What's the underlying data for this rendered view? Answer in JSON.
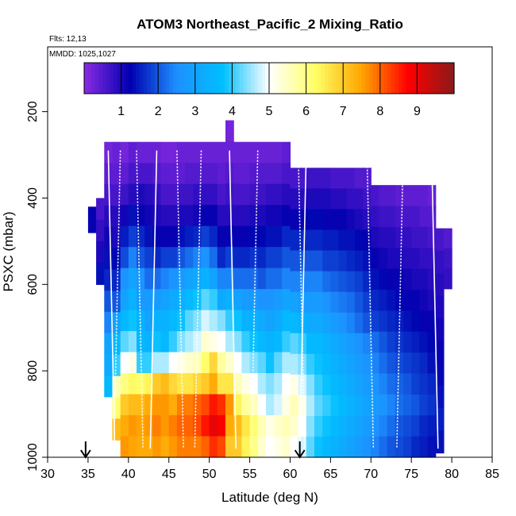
{
  "chart_data": {
    "type": "heatmap",
    "title": "ATOM3 Northeast_Pacific_2 Mixing_Ratio",
    "subtitle_flights": "Flts: 12,13",
    "subtitle_dates": "MMDD: 1025,1027",
    "xlabel": "Latitude (deg N)",
    "ylabel": "PSXC (mbar)",
    "xlim": [
      30,
      85
    ],
    "ylim": [
      1000,
      50
    ],
    "y_reversed": true,
    "x_ticks": [
      "30",
      "35",
      "40",
      "45",
      "50",
      "55",
      "60",
      "65",
      "70",
      "75",
      "80",
      "85"
    ],
    "y_ticks": [
      "200",
      "400",
      "600",
      "800",
      "1000"
    ],
    "colorbar": {
      "range": [
        0,
        10
      ],
      "tick_labels": [
        "1",
        "2",
        "3",
        "4",
        "5",
        "6",
        "7",
        "8",
        "9"
      ],
      "colors": [
        "#8a2be2",
        "#0000b0",
        "#1e90ff",
        "#00bfff",
        "#ffffff",
        "#ffff66",
        "#ffa500",
        "#ff0000",
        "#8b1a1a"
      ]
    },
    "arrows_latitude": [
      34.7,
      61.2
    ],
    "profile_latitudes": [
      37.5,
      39.0,
      41.0,
      43.5,
      46.0,
      49.0,
      52.5,
      56.0,
      61.0,
      62.0,
      69.5,
      74.0,
      77.5
    ],
    "columns": [
      {
        "lat": 35.5,
        "ptop": 420,
        "pbot": 480,
        "values": [
          1.2
        ]
      },
      {
        "lat": 36.5,
        "ptop": 400,
        "pbot": 600,
        "values": [
          0.6,
          0.8,
          1.0,
          1.4
        ]
      },
      {
        "lat": 37.5,
        "ptop": 270,
        "pbot": 860,
        "values": [
          0.2,
          0.4,
          0.6,
          0.9,
          1.1,
          1.4,
          1.6,
          2.0,
          2.4,
          3.0,
          3.2,
          3.6
        ]
      },
      {
        "lat": 38.5,
        "ptop": 270,
        "pbot": 960,
        "values": [
          0.3,
          0.4,
          0.6,
          0.9,
          1.0,
          1.3,
          1.6,
          2.0,
          3.0,
          3.6,
          4.0,
          5.6,
          6.2,
          7.2
        ]
      },
      {
        "lat": 39.5,
        "ptop": 270,
        "pbot": 1000,
        "values": [
          0.2,
          0.4,
          0.7,
          1.1,
          1.5,
          1.9,
          2.6,
          3.0,
          3.6,
          4.2,
          5.0,
          6.0,
          7.0,
          7.4,
          7.6
        ]
      },
      {
        "lat": 40.5,
        "ptop": 270,
        "pbot": 1000,
        "values": [
          0.4,
          0.6,
          0.9,
          1.4,
          1.8,
          2.4,
          3.0,
          3.4,
          3.8,
          4.4,
          5.2,
          6.3,
          7.2,
          7.6,
          7.5
        ]
      },
      {
        "lat": 41.5,
        "ptop": 270,
        "pbot": 1000,
        "values": [
          0.3,
          0.6,
          1.0,
          1.2,
          1.6,
          2.0,
          2.6,
          2.8,
          3.4,
          3.6,
          4.0,
          6.2,
          7.2,
          7.5,
          7.4
        ]
      },
      {
        "lat": 42.5,
        "ptop": 270,
        "pbot": 1000,
        "values": [
          0.3,
          0.6,
          0.9,
          1.1,
          1.4,
          1.8,
          2.2,
          2.8,
          3.0,
          3.4,
          4.0,
          6.4,
          7.4,
          7.6,
          7.4
        ]
      },
      {
        "lat": 43.5,
        "ptop": 270,
        "pbot": 1000,
        "values": [
          0.3,
          0.5,
          0.8,
          1.0,
          1.2,
          1.6,
          2.2,
          2.8,
          3.4,
          3.8,
          4.6,
          7.0,
          7.6,
          7.8,
          7.6
        ]
      },
      {
        "lat": 44.5,
        "ptop": 270,
        "pbot": 1000,
        "values": [
          0.2,
          0.4,
          0.6,
          0.9,
          1.2,
          1.8,
          2.4,
          3.0,
          3.4,
          3.6,
          4.6,
          7.2,
          7.6,
          7.6,
          7.4
        ]
      },
      {
        "lat": 45.5,
        "ptop": 270,
        "pbot": 1000,
        "values": [
          0.2,
          0.4,
          0.6,
          0.9,
          1.2,
          1.8,
          2.6,
          3.2,
          3.6,
          4.0,
          5.0,
          6.8,
          7.4,
          7.8,
          7.6
        ]
      },
      {
        "lat": 46.5,
        "ptop": 270,
        "pbot": 1000,
        "values": [
          0.3,
          0.4,
          0.7,
          1.0,
          1.4,
          2.0,
          2.8,
          3.4,
          3.8,
          4.4,
          5.2,
          6.6,
          7.8,
          8.0,
          7.8
        ]
      },
      {
        "lat": 47.5,
        "ptop": 270,
        "pbot": 1000,
        "values": [
          0.3,
          0.5,
          0.7,
          1.0,
          1.5,
          2.2,
          3.0,
          3.6,
          4.2,
          4.6,
          5.4,
          6.6,
          7.8,
          8.0,
          7.8
        ]
      },
      {
        "lat": 48.5,
        "ptop": 270,
        "pbot": 1000,
        "values": [
          0.3,
          0.5,
          0.8,
          1.1,
          1.6,
          2.4,
          3.2,
          3.8,
          4.4,
          4.8,
          5.6,
          6.8,
          8.0,
          8.2,
          7.8
        ]
      },
      {
        "lat": 49.5,
        "ptop": 270,
        "pbot": 1000,
        "values": [
          0.3,
          0.5,
          0.8,
          1.2,
          1.8,
          2.6,
          3.4,
          4.2,
          4.8,
          5.4,
          6.2,
          7.0,
          8.2,
          8.6,
          8.0
        ]
      },
      {
        "lat": 50.5,
        "ptop": 270,
        "pbot": 1000,
        "values": [
          0.3,
          0.5,
          0.8,
          1.2,
          1.6,
          2.2,
          3.0,
          4.0,
          4.6,
          5.2,
          6.8,
          7.4,
          8.6,
          9.0,
          8.4
        ]
      },
      {
        "lat": 51.5,
        "ptop": 270,
        "pbot": 1000,
        "values": [
          0.3,
          0.4,
          0.6,
          0.9,
          1.2,
          1.6,
          2.4,
          3.2,
          4.4,
          5.0,
          5.8,
          6.6,
          8.4,
          8.8,
          8.2
        ]
      },
      {
        "lat": 52.5,
        "ptop": 220,
        "pbot": 1000,
        "values": [
          0.2,
          0.3,
          0.5,
          0.7,
          0.9,
          1.2,
          1.8,
          2.4,
          3.4,
          4.0,
          4.6,
          5.4,
          6.6,
          7.6,
          7.4,
          7.0
        ]
      },
      {
        "lat": 53.5,
        "ptop": 270,
        "pbot": 1000,
        "values": [
          0.3,
          0.4,
          0.6,
          0.9,
          1.2,
          1.6,
          2.2,
          3.0,
          3.8,
          4.4,
          5.0,
          5.6,
          6.4,
          7.2,
          7.0
        ]
      },
      {
        "lat": 54.5,
        "ptop": 270,
        "pbot": 1000,
        "values": [
          0.3,
          0.4,
          0.6,
          0.9,
          1.2,
          1.6,
          2.2,
          2.8,
          3.4,
          4.0,
          4.6,
          5.2,
          5.8,
          6.6,
          6.4
        ]
      },
      {
        "lat": 55.5,
        "ptop": 270,
        "pbot": 1000,
        "values": [
          0.3,
          0.5,
          0.7,
          1.0,
          1.3,
          1.7,
          2.2,
          2.8,
          3.4,
          3.8,
          4.4,
          5.0,
          5.6,
          6.2,
          6.0
        ]
      },
      {
        "lat": 56.5,
        "ptop": 270,
        "pbot": 1000,
        "values": [
          0.3,
          0.5,
          0.7,
          1.0,
          1.3,
          1.6,
          2.0,
          2.6,
          3.2,
          3.6,
          4.2,
          4.6,
          5.0,
          5.6,
          5.4
        ]
      },
      {
        "lat": 57.5,
        "ptop": 270,
        "pbot": 1000,
        "values": [
          0.3,
          0.5,
          0.8,
          1.1,
          1.4,
          1.8,
          2.2,
          2.6,
          3.0,
          3.4,
          3.8,
          4.4,
          4.6,
          5.2,
          5.0
        ]
      },
      {
        "lat": 58.5,
        "ptop": 270,
        "pbot": 1000,
        "values": [
          0.3,
          0.5,
          0.8,
          1.1,
          1.4,
          1.8,
          2.2,
          2.8,
          3.2,
          3.6,
          4.2,
          4.6,
          4.8,
          5.4,
          5.2
        ]
      },
      {
        "lat": 59.5,
        "ptop": 270,
        "pbot": 1000,
        "values": [
          0.4,
          0.6,
          0.9,
          1.2,
          1.6,
          2.0,
          2.4,
          3.0,
          3.6,
          4.0,
          4.6,
          5.0,
          5.2,
          5.6,
          5.4
        ]
      },
      {
        "lat": 60.5,
        "ptop": 330,
        "pbot": 1000,
        "values": [
          0.6,
          0.9,
          1.2,
          1.6,
          2.0,
          2.4,
          3.0,
          3.6,
          4.2,
          4.6,
          5.2,
          5.6,
          5.4,
          5.0
        ]
      },
      {
        "lat": 61.5,
        "ptop": 330,
        "pbot": 1000,
        "values": [
          0.6,
          0.9,
          1.2,
          1.6,
          2.0,
          2.4,
          2.8,
          3.4,
          4.0,
          4.4,
          4.8,
          5.2,
          5.0,
          4.8
        ]
      },
      {
        "lat": 62.5,
        "ptop": 330,
        "pbot": 1000,
        "values": [
          0.7,
          1.0,
          1.3,
          1.6,
          2.0,
          2.4,
          2.8,
          3.2,
          3.6,
          4.0,
          4.4,
          4.6,
          4.4,
          4.2
        ]
      },
      {
        "lat": 63.5,
        "ptop": 330,
        "pbot": 1000,
        "values": [
          0.7,
          1.0,
          1.3,
          1.6,
          2.0,
          2.4,
          2.8,
          3.2,
          3.6,
          3.8,
          4.0,
          4.2,
          4.0,
          3.8
        ]
      },
      {
        "lat": 64.5,
        "ptop": 330,
        "pbot": 1000,
        "values": [
          0.7,
          1.0,
          1.2,
          1.5,
          1.8,
          2.2,
          2.6,
          3.0,
          3.4,
          3.6,
          3.8,
          4.0,
          3.8,
          3.6
        ]
      },
      {
        "lat": 65.5,
        "ptop": 330,
        "pbot": 1000,
        "values": [
          0.6,
          0.9,
          1.2,
          1.5,
          1.8,
          2.1,
          2.4,
          2.8,
          3.2,
          3.4,
          3.6,
          3.8,
          3.6,
          3.4
        ]
      },
      {
        "lat": 66.5,
        "ptop": 330,
        "pbot": 1000,
        "values": [
          0.6,
          0.9,
          1.2,
          1.4,
          1.7,
          2.0,
          2.3,
          2.6,
          3.0,
          3.2,
          3.4,
          3.6,
          3.4,
          3.2
        ]
      },
      {
        "lat": 67.5,
        "ptop": 330,
        "pbot": 1000,
        "values": [
          0.6,
          0.8,
          1.1,
          1.4,
          1.6,
          1.9,
          2.2,
          2.4,
          2.8,
          3.0,
          3.2,
          3.4,
          3.2,
          3.0
        ]
      },
      {
        "lat": 68.5,
        "ptop": 330,
        "pbot": 1000,
        "values": [
          0.5,
          0.8,
          1.0,
          1.3,
          1.5,
          1.8,
          2.0,
          2.2,
          2.6,
          2.8,
          3.0,
          3.2,
          3.0,
          2.8
        ]
      },
      {
        "lat": 69.5,
        "ptop": 330,
        "pbot": 1000,
        "values": [
          0.5,
          0.7,
          0.9,
          1.2,
          1.4,
          1.6,
          1.8,
          2.0,
          2.4,
          2.6,
          2.8,
          3.0,
          2.8,
          2.6
        ]
      },
      {
        "lat": 70.5,
        "ptop": 370,
        "pbot": 1000,
        "values": [
          0.6,
          0.8,
          1.0,
          1.2,
          1.4,
          1.6,
          1.8,
          2.2,
          2.4,
          2.6,
          2.8,
          2.6,
          2.4
        ]
      },
      {
        "lat": 71.5,
        "ptop": 370,
        "pbot": 1000,
        "values": [
          0.5,
          0.7,
          0.9,
          1.1,
          1.3,
          1.5,
          1.7,
          2.0,
          2.2,
          2.4,
          2.6,
          2.4,
          2.2
        ]
      },
      {
        "lat": 72.5,
        "ptop": 370,
        "pbot": 1000,
        "values": [
          0.5,
          0.7,
          0.9,
          1.0,
          1.2,
          1.4,
          1.6,
          1.8,
          2.0,
          2.2,
          2.4,
          2.2,
          2.0
        ]
      },
      {
        "lat": 73.5,
        "ptop": 370,
        "pbot": 1000,
        "values": [
          0.4,
          0.6,
          0.8,
          1.0,
          1.2,
          1.3,
          1.5,
          1.7,
          1.9,
          2.1,
          2.2,
          2.0,
          1.9
        ]
      },
      {
        "lat": 74.5,
        "ptop": 370,
        "pbot": 1000,
        "values": [
          0.4,
          0.6,
          0.8,
          0.9,
          1.1,
          1.2,
          1.4,
          1.6,
          1.8,
          2.0,
          2.1,
          1.9,
          1.8
        ]
      },
      {
        "lat": 75.5,
        "ptop": 370,
        "pbot": 1000,
        "values": [
          0.4,
          0.6,
          0.7,
          0.9,
          1.0,
          1.2,
          1.3,
          1.5,
          1.7,
          1.8,
          2.0,
          1.8,
          1.6
        ]
      },
      {
        "lat": 76.5,
        "ptop": 370,
        "pbot": 1000,
        "values": [
          0.4,
          0.5,
          0.7,
          0.8,
          1.0,
          1.1,
          1.2,
          1.4,
          1.6,
          1.7,
          1.8,
          1.6,
          1.5
        ]
      },
      {
        "lat": 77.5,
        "ptop": 370,
        "pbot": 1000,
        "values": [
          0.3,
          0.5,
          0.6,
          0.8,
          0.9,
          1.0,
          1.2,
          1.3,
          1.4,
          1.6,
          1.7,
          1.5,
          1.4
        ]
      },
      {
        "lat": 78.5,
        "ptop": 470,
        "pbot": 990,
        "values": [
          0.6,
          0.8,
          0.9,
          1.0,
          1.1,
          1.2,
          1.3,
          1.4,
          1.5,
          1.4
        ]
      },
      {
        "lat": 79.5,
        "ptop": 470,
        "pbot": 610,
        "values": [
          0.5,
          0.7,
          0.8
        ]
      }
    ]
  }
}
